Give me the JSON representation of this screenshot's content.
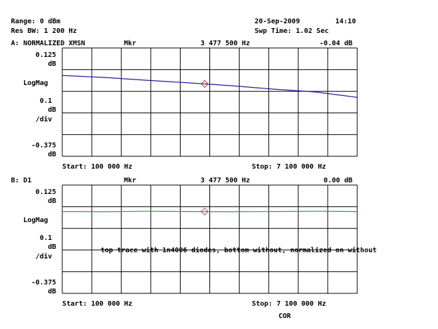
{
  "header": {
    "range": "Range: 0 dBm",
    "res_bw": "Res BW: 1 200 Hz",
    "date": "20-Sep-2009",
    "time": "14:10",
    "sweep_time": "Swp Time: 1.02 Sec"
  },
  "chart_data": [
    {
      "type": "line",
      "title": "A: NORMALIZED XMSN",
      "marker_label": "Mkr",
      "marker_x": {
        "value": 3477500,
        "label": "3 477 500 Hz"
      },
      "marker_value": "-0.04 dB",
      "y_format": "LogMag",
      "y_unit": "dB",
      "y_scale": 0.1,
      "y_scale_unit": "/div",
      "x": [
        100000,
        1100000,
        2100000,
        3100000,
        4100000,
        5100000,
        6100000,
        7100000
      ],
      "values": [
        -0.002,
        -0.011,
        -0.024,
        -0.036,
        -0.049,
        -0.065,
        -0.078,
        -0.103
      ],
      "color": "#1c1c96",
      "marker_color": "#d02020",
      "xlim": [
        100000,
        7100000
      ],
      "ylim": [
        -0.375,
        0.125
      ],
      "yticks": [
        0.125,
        -0.375
      ],
      "grid": true,
      "start": "Start: 100 000 Hz",
      "stop": "Stop: 7 100 000 Hz"
    },
    {
      "type": "line",
      "title": "B: D1",
      "marker_label": "Mkr",
      "marker_x": {
        "value": 3477500,
        "label": "3 477 500 Hz"
      },
      "marker_value": "0.00 dB",
      "y_format": "LogMag",
      "y_unit": "dB",
      "y_scale": 0.1,
      "y_scale_unit": "/div",
      "x": [
        100000,
        1100000,
        2100000,
        3100000,
        4100000,
        5100000,
        6100000,
        7100000
      ],
      "values": [
        0.003,
        0.002,
        0.004,
        0.003,
        0.002,
        0.003,
        0.004,
        0.003
      ],
      "color": "#2ca02c",
      "marker_color": "#b04080",
      "xlim": [
        100000,
        7100000
      ],
      "ylim": [
        -0.375,
        0.125
      ],
      "yticks": [
        0.125,
        -0.375
      ],
      "grid": true,
      "start": "Start: 100 000 Hz",
      "stop": "Stop: 7 100 000 Hz"
    }
  ],
  "annotation": "top trace with 1n4006 diodes, bottom without, normalized on without",
  "status": "COR"
}
